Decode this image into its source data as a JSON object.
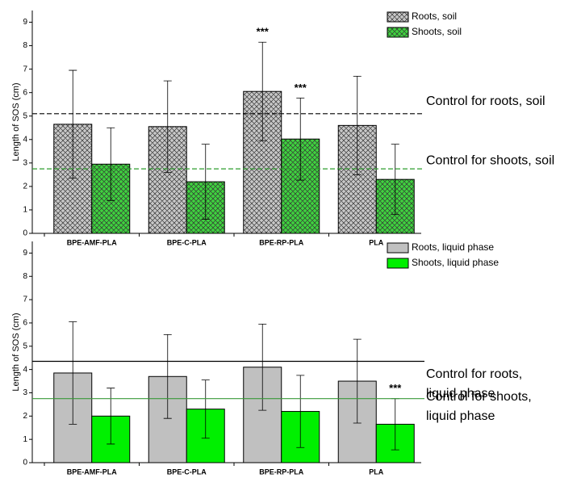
{
  "chart_data": [
    {
      "type": "bar",
      "ylabel": "Length of SOS (cm)",
      "categories": [
        "BPE-AMF-PLA",
        "BPE-C-PLA",
        "BPE-RP-PLA",
        "PLA"
      ],
      "series": [
        {
          "name": "Roots, soil",
          "color": "#c8c8c8",
          "pattern": "crosshatch",
          "values": [
            4.65,
            4.55,
            6.05,
            4.6
          ],
          "errors": [
            2.3,
            1.95,
            2.1,
            2.1
          ]
        },
        {
          "name": "Shoots, soil",
          "color": "#3fd23f",
          "pattern": "crosshatch",
          "values": [
            2.95,
            2.2,
            4.02,
            2.3
          ],
          "errors": [
            1.55,
            1.6,
            1.75,
            1.5
          ]
        }
      ],
      "ylim": [
        0,
        9.5
      ],
      "yticks": [
        0,
        1,
        2,
        3,
        4,
        5,
        6,
        7,
        8,
        9
      ],
      "legend": "upper right",
      "reference_lines": [
        {
          "label": [
            "Control for roots, soil"
          ],
          "value": 5.1,
          "color": "#000000",
          "dash": true
        },
        {
          "label": [
            "Control for shoots, soil"
          ],
          "value": 2.75,
          "color": "#2e9e2e",
          "dash": true
        }
      ],
      "annotations": [
        {
          "text": "***",
          "series": 0,
          "category": 2
        },
        {
          "text": "***",
          "series": 1,
          "category": 2
        }
      ]
    },
    {
      "type": "bar",
      "ylabel": "Length of SOS (cm)",
      "categories": [
        "BPE-AMF-PLA",
        "BPE-C-PLA",
        "BPE-RP-PLA",
        "PLA"
      ],
      "series": [
        {
          "name": "Roots, liquid phase",
          "color": "#c0c0c0",
          "values": [
            3.85,
            3.7,
            4.1,
            3.5
          ],
          "errors": [
            2.2,
            1.8,
            1.85,
            1.8
          ]
        },
        {
          "name": "Shoots, liquid phase",
          "color": "#00f000",
          "values": [
            2.0,
            2.3,
            2.2,
            1.65
          ],
          "errors": [
            1.2,
            1.25,
            1.55,
            1.1
          ]
        }
      ],
      "ylim": [
        0,
        9.5
      ],
      "yticks": [
        0,
        1,
        2,
        3,
        4,
        5,
        6,
        7,
        8,
        9
      ],
      "legend": "upper right",
      "reference_lines": [
        {
          "label": [
            "Control for roots,",
            "liquid phase"
          ],
          "value": 4.35,
          "color": "#000000",
          "dash": false
        },
        {
          "label": [
            "Control for shoots,",
            "liquid phase"
          ],
          "value": 2.75,
          "color": "#3a9a3a",
          "dash": false
        }
      ],
      "annotations": [
        {
          "text": "***",
          "series": 1,
          "category": 3
        }
      ]
    }
  ]
}
